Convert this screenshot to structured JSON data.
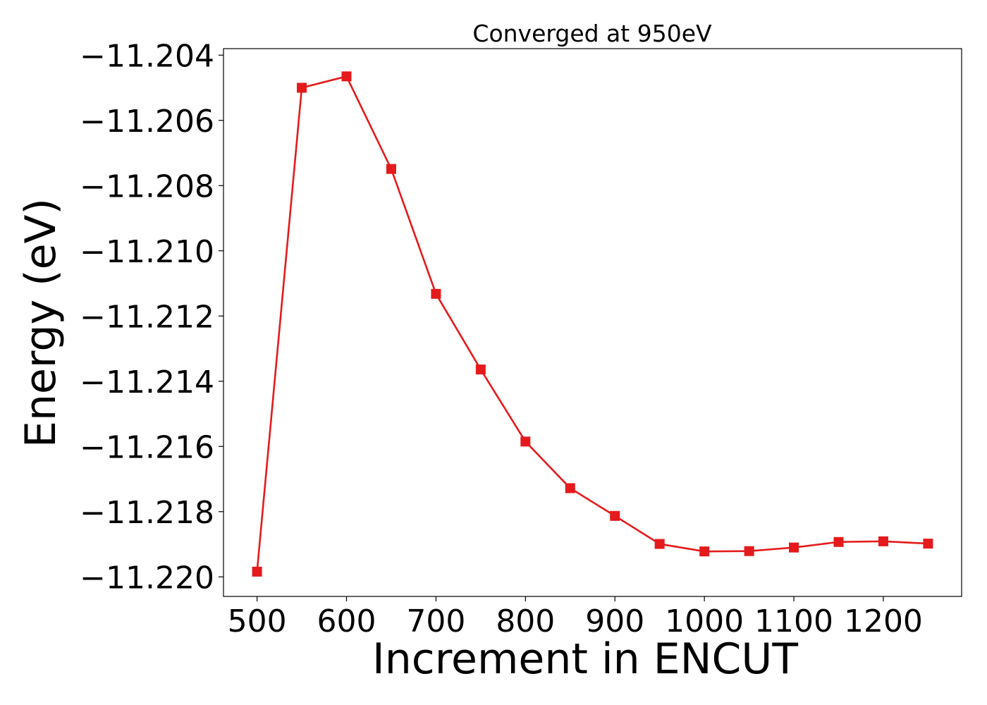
{
  "chart_data": {
    "type": "line",
    "title": "Converged at 950eV",
    "xlabel": "Increment in ENCUT",
    "ylabel": "Energy (eV)",
    "xlim": [
      462.5,
      1287.5
    ],
    "ylim": [
      -11.2206,
      -11.2038
    ],
    "xticks": [
      500,
      600,
      700,
      800,
      900,
      1000,
      1100,
      1200
    ],
    "xtick_labels": [
      "500",
      "600",
      "700",
      "800",
      "900",
      "1000",
      "1100",
      "1200"
    ],
    "yticks": [
      -11.204,
      -11.206,
      -11.208,
      -11.21,
      -11.212,
      -11.214,
      -11.216,
      -11.218,
      -11.22
    ],
    "ytick_labels": [
      "−11.204",
      "−11.206",
      "−11.208",
      "−11.210",
      "−11.212",
      "−11.214",
      "−11.216",
      "−11.218",
      "−11.220"
    ],
    "grid": false,
    "series": [
      {
        "color": "#e41a1c",
        "marker": "square",
        "x": [
          500,
          550,
          600,
          650,
          700,
          750,
          800,
          850,
          900,
          950,
          1000,
          1050,
          1100,
          1150,
          1200,
          1250
        ],
        "values": [
          -11.21984,
          -11.205,
          -11.20465,
          -11.20749,
          -11.21132,
          -11.21364,
          -11.21585,
          -11.21728,
          -11.21813,
          -11.21899,
          -11.21922,
          -11.21921,
          -11.2191,
          -11.21893,
          -11.21891,
          -11.21898
        ]
      }
    ]
  }
}
